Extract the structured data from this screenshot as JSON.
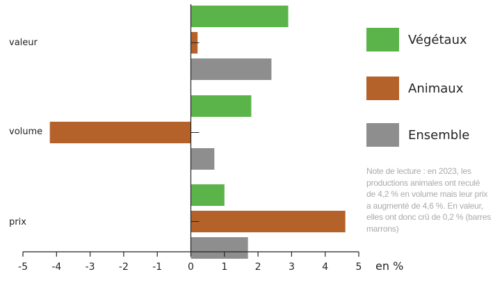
{
  "chart_data": {
    "type": "bar",
    "orientation": "horizontal",
    "categories": [
      "valeur",
      "volume",
      "prix"
    ],
    "series": [
      {
        "name": "Végétaux",
        "color": "#5ab44a",
        "values": [
          2.9,
          1.8,
          1.0
        ]
      },
      {
        "name": "Animaux",
        "color": "#b5622a",
        "values": [
          0.2,
          -4.2,
          4.6
        ]
      },
      {
        "name": "Ensemble",
        "color": "#8e8e8e",
        "values": [
          2.4,
          0.7,
          1.7
        ]
      }
    ],
    "xlim": [
      -5,
      5
    ],
    "x_ticks": [
      "-5",
      "-4",
      "-3",
      "-2",
      "-1",
      "0",
      "1",
      "2",
      "3",
      "4",
      "5"
    ],
    "xlabel": "en %",
    "grid": false,
    "legend_position": "right"
  },
  "note_lines": [
    "Note de lecture : en 2023, les",
    "productions animales ont reculé",
    "de 4,2 % en volume mais leur prix",
    "a augmenté de 4,6 %. En valeur,",
    "elles ont donc crû de 0,2 % (barres",
    "marrons)"
  ]
}
